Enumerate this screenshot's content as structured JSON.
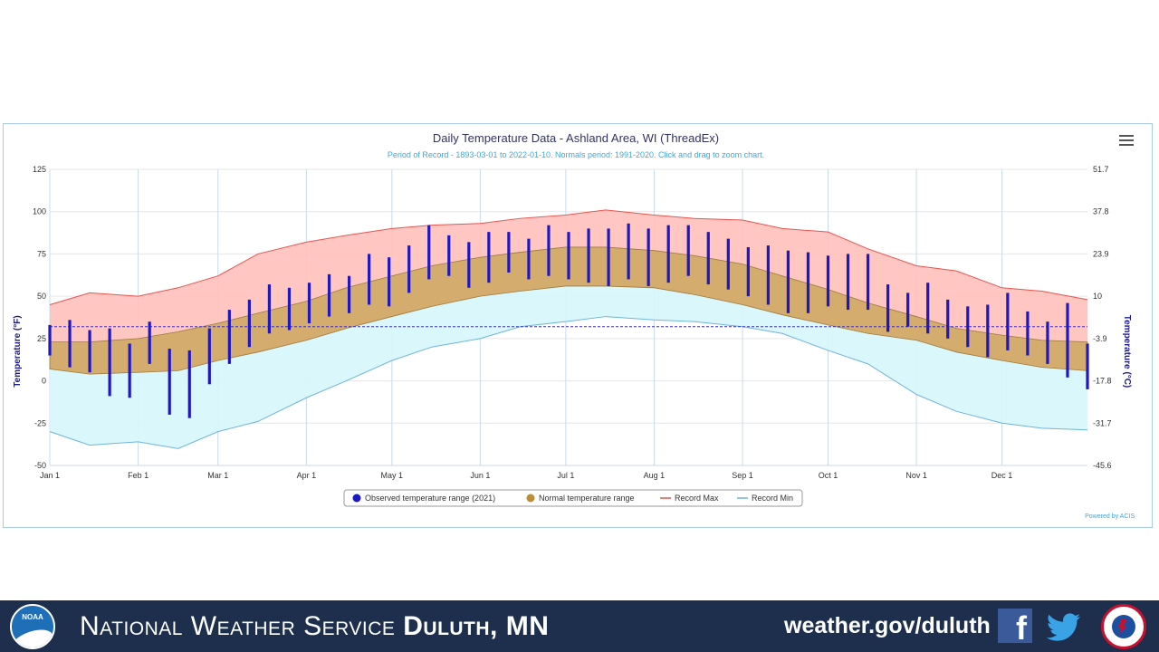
{
  "chart_data": {
    "type": "area",
    "title": "Daily Temperature Data - Ashland Area, WI (ThreadEx)",
    "subtitle": "Period of Record - 1893-03-01 to 2022-01-10. Normals period: 1991-2020. Click and drag to zoom chart.",
    "ylabel": "Temperature (°F)",
    "ylabel_right": "Temperature (°C)",
    "ylim": [
      -50,
      125
    ],
    "yticks": [
      -50,
      -25,
      0,
      25,
      50,
      75,
      100,
      125
    ],
    "yticks_right": [
      "-45.6",
      "-31.7",
      "-17.8",
      "-3.9",
      "10",
      "23.9",
      "37.8",
      "51.7"
    ],
    "xlim": [
      1,
      365
    ],
    "xticks": [
      {
        "label": "Jan 1",
        "day": 1
      },
      {
        "label": "Feb 1",
        "day": 32
      },
      {
        "label": "Mar 1",
        "day": 60
      },
      {
        "label": "Apr 1",
        "day": 91
      },
      {
        "label": "May 1",
        "day": 121
      },
      {
        "label": "Jun 1",
        "day": 152
      },
      {
        "label": "Jul 1",
        "day": 182
      },
      {
        "label": "Aug 1",
        "day": 213
      },
      {
        "label": "Sep 1",
        "day": 244
      },
      {
        "label": "Oct 1",
        "day": 274
      },
      {
        "label": "Nov 1",
        "day": 305
      },
      {
        "label": "Dec 1",
        "day": 335
      }
    ],
    "freezing_line": 32,
    "grid": true,
    "legend_position": "bottom",
    "series": [
      {
        "name": "Observed temperature range (2021)",
        "kind": "range-bars",
        "color": "#1f17c4",
        "x": [
          1,
          8,
          15,
          22,
          29,
          36,
          43,
          50,
          57,
          64,
          71,
          78,
          85,
          92,
          99,
          106,
          113,
          120,
          127,
          134,
          141,
          148,
          155,
          162,
          169,
          176,
          183,
          190,
          197,
          204,
          211,
          218,
          225,
          232,
          239,
          246,
          253,
          260,
          267,
          274,
          281,
          288,
          295,
          302,
          309,
          316,
          323,
          330,
          337,
          344,
          351,
          358,
          365
        ],
        "high": [
          33,
          36,
          30,
          31,
          22,
          35,
          19,
          18,
          31,
          42,
          48,
          57,
          55,
          58,
          63,
          62,
          75,
          73,
          80,
          92,
          86,
          82,
          88,
          88,
          84,
          92,
          88,
          90,
          90,
          93,
          90,
          92,
          92,
          88,
          84,
          79,
          80,
          77,
          76,
          74,
          75,
          75,
          57,
          52,
          58,
          48,
          44,
          45,
          52,
          41,
          35,
          46,
          22
        ],
        "low": [
          15,
          8,
          5,
          -9,
          -10,
          10,
          -20,
          -22,
          -2,
          10,
          20,
          28,
          30,
          34,
          38,
          40,
          45,
          44,
          52,
          60,
          62,
          55,
          58,
          64,
          60,
          62,
          60,
          58,
          56,
          60,
          56,
          58,
          62,
          57,
          54,
          50,
          45,
          40,
          40,
          44,
          42,
          42,
          29,
          32,
          28,
          25,
          20,
          14,
          18,
          15,
          10,
          2,
          -5
        ]
      },
      {
        "name": "Normal temperature range",
        "kind": "band",
        "color": "#b98e37",
        "x": [
          1,
          15,
          32,
          46,
          60,
          74,
          91,
          105,
          121,
          135,
          152,
          166,
          182,
          196,
          213,
          227,
          244,
          258,
          274,
          288,
          305,
          319,
          335,
          349,
          365
        ],
        "high": [
          23,
          23,
          25,
          29,
          34,
          40,
          47,
          55,
          62,
          68,
          73,
          76,
          79,
          79,
          77,
          74,
          69,
          62,
          54,
          46,
          38,
          31,
          27,
          24,
          23
        ],
        "low": [
          7,
          4,
          5,
          6,
          12,
          17,
          24,
          31,
          38,
          44,
          50,
          53,
          56,
          56,
          55,
          51,
          45,
          39,
          33,
          28,
          24,
          17,
          12,
          8,
          6
        ]
      },
      {
        "name": "Record Max",
        "kind": "line",
        "color": "#e8554e",
        "x": [
          1,
          15,
          32,
          46,
          60,
          74,
          91,
          105,
          121,
          135,
          152,
          166,
          182,
          196,
          213,
          227,
          244,
          258,
          274,
          288,
          305,
          319,
          335,
          349,
          365
        ],
        "values": [
          45,
          52,
          50,
          55,
          62,
          75,
          82,
          86,
          90,
          92,
          93,
          96,
          98,
          101,
          98,
          96,
          95,
          90,
          88,
          78,
          68,
          65,
          55,
          53,
          48
        ]
      },
      {
        "name": "Record Min",
        "kind": "line",
        "color": "#6eb4dc",
        "x": [
          1,
          15,
          32,
          46,
          60,
          74,
          91,
          105,
          121,
          135,
          152,
          166,
          182,
          196,
          213,
          227,
          244,
          258,
          274,
          288,
          305,
          319,
          335,
          349,
          365
        ],
        "values": [
          -30,
          -38,
          -36,
          -40,
          -30,
          -24,
          -10,
          0,
          12,
          20,
          25,
          32,
          35,
          38,
          36,
          35,
          32,
          28,
          18,
          10,
          -8,
          -18,
          -25,
          -28,
          -29
        ]
      }
    ],
    "credits": "Powered by ACIS"
  },
  "footer": {
    "noaa_logo_text": "NOAA",
    "agency_prefix": "National Weather Service",
    "office": "Duluth, MN",
    "url": "weather.gov/duluth"
  }
}
